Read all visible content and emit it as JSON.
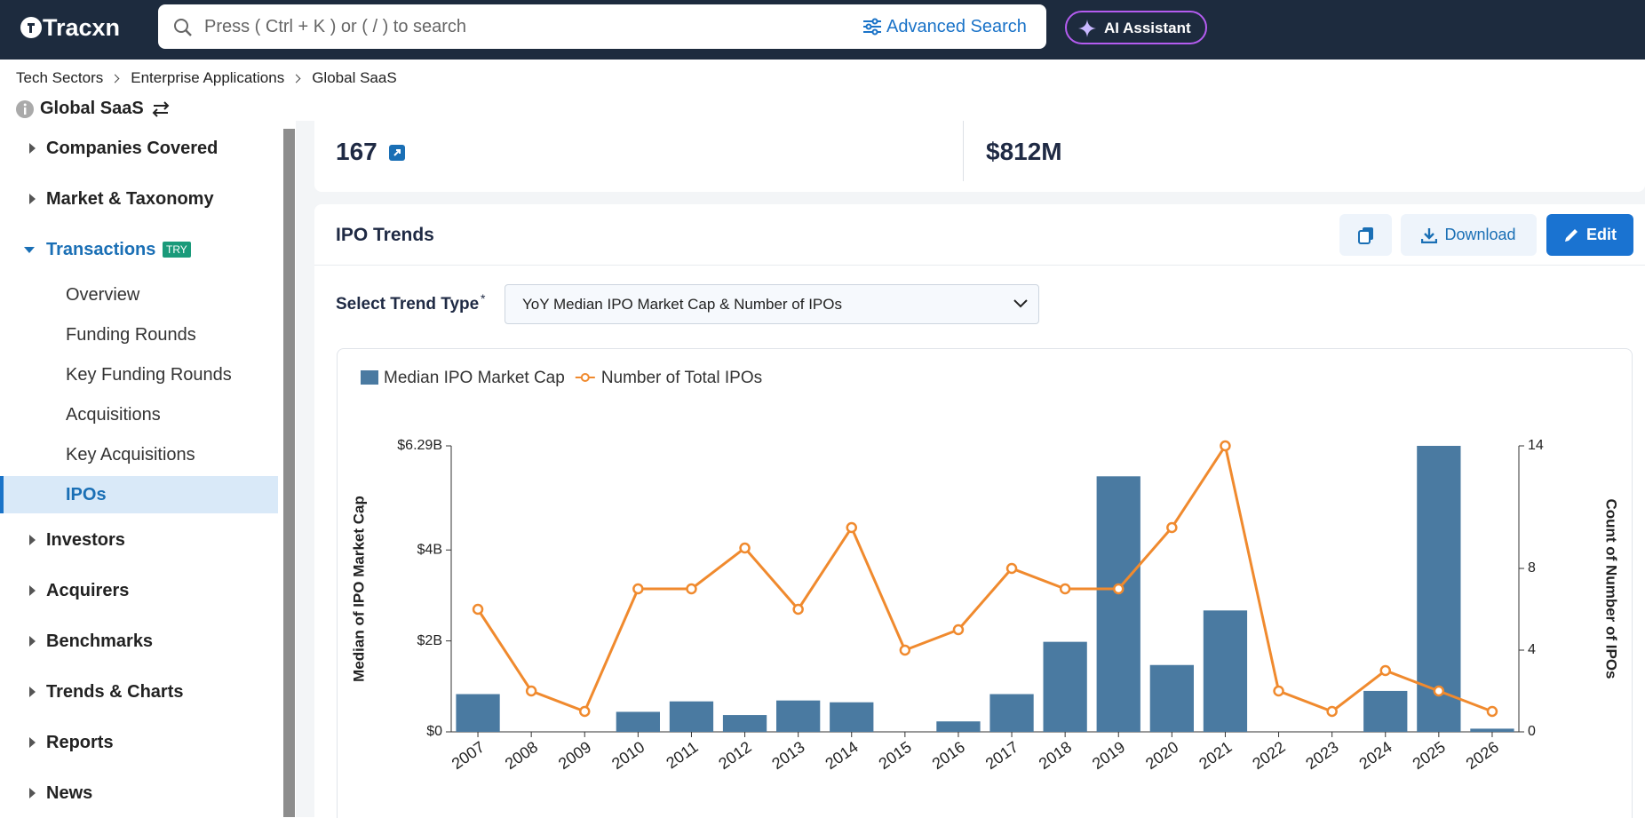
{
  "header": {
    "logo": "Tracxn",
    "search_placeholder": "Press ( Ctrl + K ) or ( / ) to search",
    "advanced_search": "Advanced Search",
    "ai_assistant": "AI Assistant"
  },
  "breadcrumb": [
    "Tech Sectors",
    "Enterprise Applications",
    "Global SaaS"
  ],
  "page_title": "Global SaaS",
  "sidebar": {
    "items": [
      {
        "label": "Companies Covered"
      },
      {
        "label": "Market & Taxonomy"
      },
      {
        "label": "Transactions",
        "badge": "TRY",
        "children": [
          "Overview",
          "Funding Rounds",
          "Key Funding Rounds",
          "Acquisitions",
          "Key Acquisitions",
          "IPOs"
        ]
      },
      {
        "label": "Investors"
      },
      {
        "label": "Acquirers"
      },
      {
        "label": "Benchmarks"
      },
      {
        "label": "Trends & Charts"
      },
      {
        "label": "Reports"
      },
      {
        "label": "News"
      }
    ]
  },
  "stats": [
    "167",
    "$812M"
  ],
  "panel": {
    "title": "IPO Trends",
    "download": "Download",
    "edit": "Edit",
    "select_label": "Select Trend Type",
    "required": "*",
    "dropdown": "YoY Median IPO Market Cap & Number of IPOs"
  },
  "chart_data": {
    "type": "bar",
    "categories": [
      "2007",
      "2008",
      "2009",
      "2010",
      "2011",
      "2012",
      "2013",
      "2014",
      "2015",
      "2016",
      "2017",
      "2018",
      "2019",
      "2020",
      "2021",
      "2022",
      "2023",
      "2024",
      "2025",
      "2026"
    ],
    "series": [
      {
        "name": "Median IPO Market Cap",
        "type": "bar",
        "color": "#4a7aa1",
        "values": [
          830000000,
          0,
          0,
          440000000,
          670000000,
          370000000,
          690000000,
          650000000,
          0,
          230000000,
          830000000,
          1980000000,
          5620000000,
          1470000000,
          2670000000,
          0,
          0,
          900000000,
          6290000000,
          70000000
        ]
      },
      {
        "name": "Number of Total IPOs",
        "type": "line",
        "axis": "y2",
        "color": "#f08a2e",
        "values": [
          6,
          2,
          1,
          7,
          7,
          9,
          6,
          10,
          4,
          5,
          8,
          7,
          7,
          10,
          14,
          2,
          1,
          3,
          2,
          1
        ]
      }
    ],
    "y_label": "Median of IPO Market Cap",
    "y2_label": "Count of Number of IPOs",
    "ylim": [
      0,
      6290000000
    ],
    "yticks": [
      {
        "value": 0,
        "label": "$0"
      },
      {
        "value": 2000000000,
        "label": "$2B"
      },
      {
        "value": 4000000000,
        "label": "$4B"
      },
      {
        "value": 6290000000,
        "label": "$6.29B"
      }
    ],
    "y2lim": [
      0,
      14
    ],
    "y2ticks": [
      0,
      4,
      8,
      14
    ]
  }
}
